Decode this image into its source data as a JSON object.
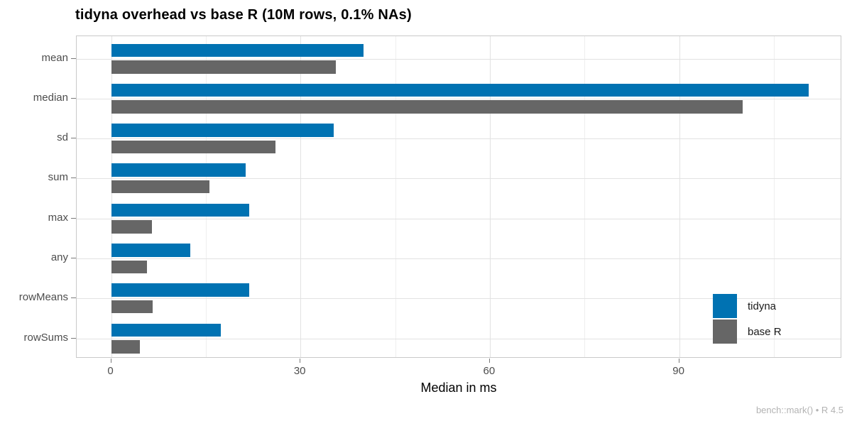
{
  "title": "tidyna overhead vs base R (10M rows, 0.1% NAs)",
  "caption": "bench::mark() • R 4.5",
  "axis": {
    "xlabel": "Median in ms",
    "x_major_ticks": [
      0,
      30,
      60,
      90
    ],
    "x_minor_ticks": [
      15,
      45,
      75,
      105
    ]
  },
  "legend": {
    "position": "inside-right",
    "items": [
      {
        "label": "tidyna",
        "color": "#0072B2"
      },
      {
        "label": "base R",
        "color": "#666666"
      }
    ]
  },
  "colors": {
    "tidyna_bar": "#0072B2",
    "base_r_bar": "#666666",
    "grid_major": "#E2E2E2",
    "grid_minor": "#EFEFEF",
    "panel_border": "#C9C9C9",
    "axis_text": "#4D4D4D",
    "title_text": "#000000",
    "caption_text": "#B3B3B3"
  },
  "chart_data": {
    "type": "bar",
    "orientation": "horizontal",
    "title": "tidyna overhead vs base R (10M rows, 0.1% NAs)",
    "xlabel": "Median in ms",
    "ylabel": "",
    "categories": [
      "mean",
      "median",
      "sd",
      "sum",
      "max",
      "any",
      "rowMeans",
      "rowSums"
    ],
    "series": [
      {
        "name": "tidyna",
        "color": "#0072B2",
        "values": [
          40,
          110.5,
          35.3,
          21.3,
          21.9,
          12.5,
          21.9,
          17.4
        ]
      },
      {
        "name": "base R",
        "color": "#666666",
        "values": [
          35.6,
          100,
          26,
          15.6,
          6.5,
          5.7,
          6.6,
          4.6
        ]
      }
    ],
    "xlim": [
      -5.5,
      115.8
    ],
    "x_ticks": [
      0,
      30,
      60,
      90
    ],
    "grid": true,
    "legend_position": "inside right",
    "caption": "bench::mark() • R 4.5"
  }
}
